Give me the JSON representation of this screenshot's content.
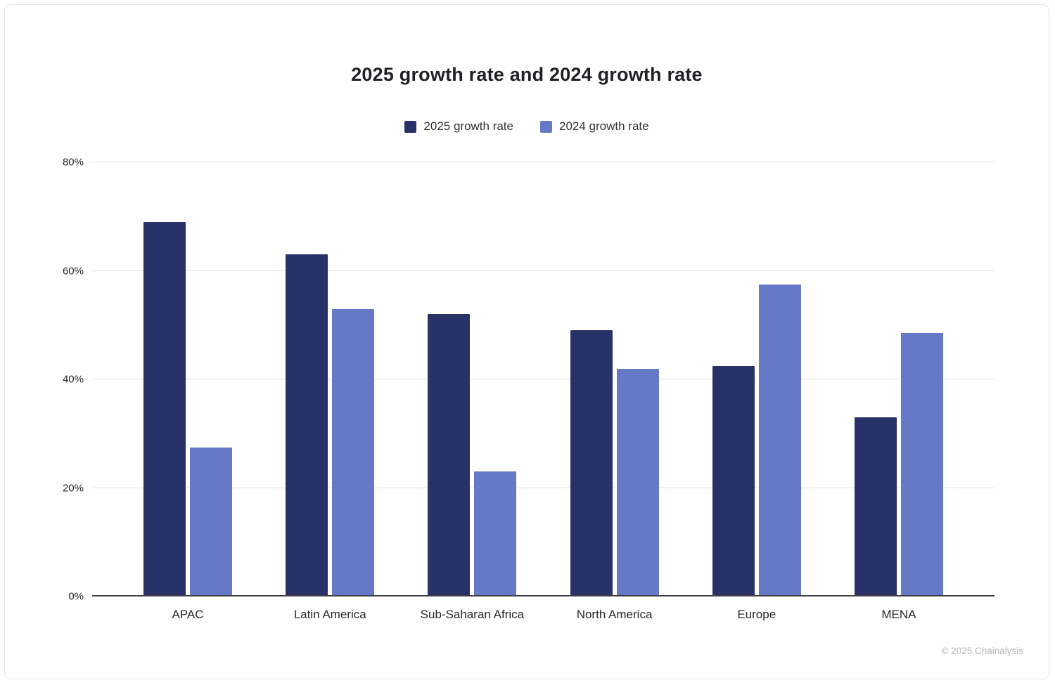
{
  "chart_data": {
    "type": "bar",
    "title": "2025 growth rate and 2024 growth rate",
    "categories": [
      "APAC",
      "Latin America",
      "Sub-Saharan Africa",
      "North America",
      "Europe",
      "MENA"
    ],
    "series": [
      {
        "name": "2025 growth rate",
        "color": "#283268",
        "values": [
          69,
          63,
          52,
          49,
          42.5,
          33
        ]
      },
      {
        "name": "2024 growth rate",
        "color": "#6579c8",
        "values": [
          27.5,
          53,
          23,
          42,
          57.5,
          48.5
        ]
      }
    ],
    "ylim": [
      0,
      80
    ],
    "yticks": [
      0,
      20,
      40,
      60,
      80
    ],
    "ytick_labels": [
      "0%",
      "20%",
      "40%",
      "60%",
      "80%"
    ],
    "grid": true,
    "legend_position": "top"
  },
  "footer": {
    "copyright": "© 2025 Chainalysis"
  }
}
